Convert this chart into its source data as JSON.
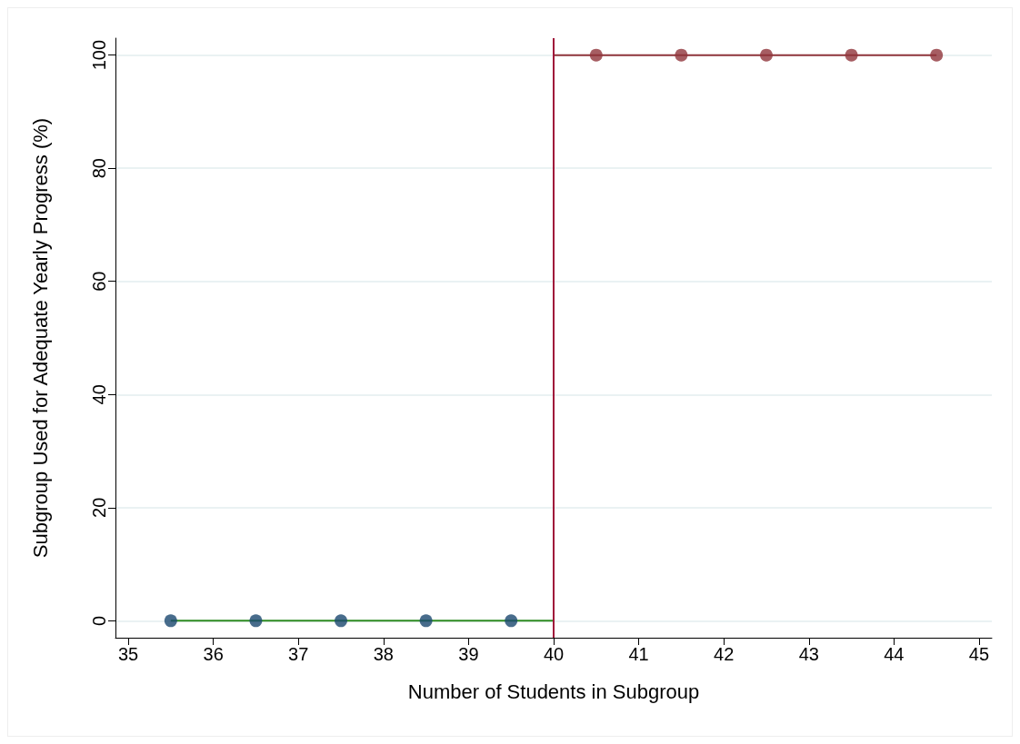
{
  "chart_data": {
    "type": "scatter",
    "xlabel": "Number of Students in Subgroup",
    "ylabel": "Subgroup Used for Adequate Yearly Progress (%)",
    "xlim": [
      34.85,
      45.15
    ],
    "xticks": [
      35,
      36,
      37,
      38,
      39,
      40,
      41,
      42,
      43,
      44,
      45
    ],
    "ylim": [
      -3,
      103
    ],
    "yticks": [
      0,
      20,
      40,
      60,
      80,
      100
    ],
    "grid": "y",
    "series": [
      {
        "marker": "circle",
        "color": "#1a476f",
        "x": [
          35.5,
          36.5,
          37.5,
          38.5,
          39.5
        ],
        "values": [
          0,
          0,
          0,
          0,
          0
        ]
      },
      {
        "marker": "circle",
        "color": "#90353b",
        "x": [
          40.5,
          41.5,
          42.5,
          43.5,
          44.5
        ],
        "values": [
          100,
          100,
          100,
          100,
          100
        ]
      },
      {
        "type": "line",
        "marker": "none",
        "color": "#2e8b22",
        "x": [
          35.5,
          40
        ],
        "values": [
          0,
          0
        ]
      },
      {
        "type": "line",
        "marker": "none",
        "color": "#90353b",
        "x": [
          40,
          44.5
        ],
        "values": [
          100,
          100
        ]
      }
    ],
    "ref_lines": [
      {
        "axis": "x",
        "value": 40,
        "color": "#a0163a"
      }
    ]
  }
}
